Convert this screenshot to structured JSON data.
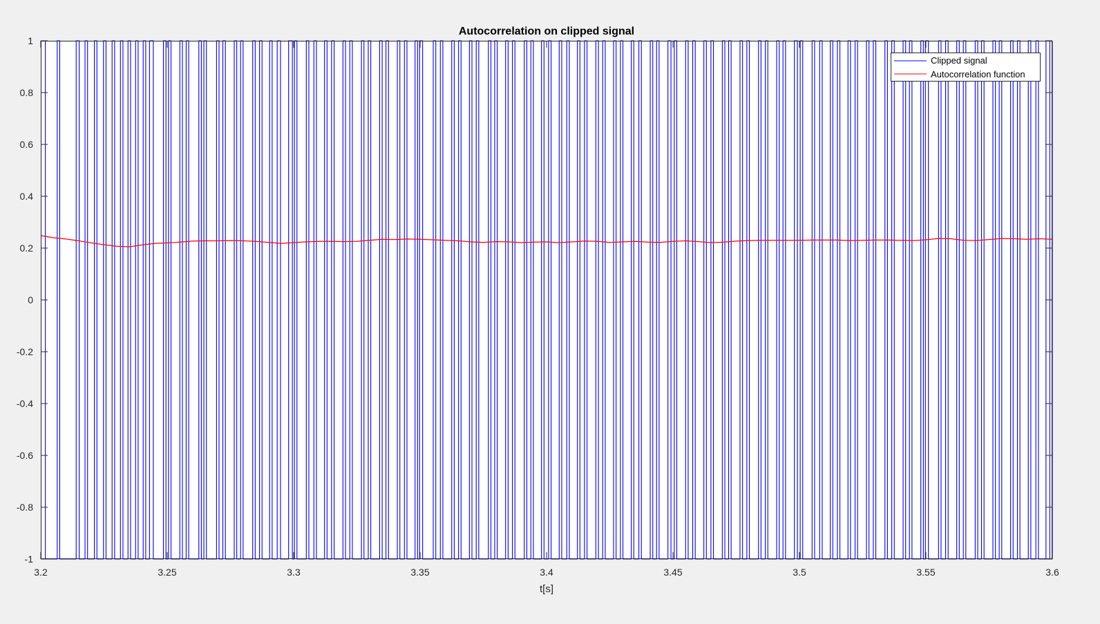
{
  "chart_data": {
    "type": "line",
    "title": "Autocorrelation on clipped signal",
    "xlabel": "t[s]",
    "ylabel": "",
    "xlim": [
      3.2,
      3.6
    ],
    "ylim": [
      -1,
      1
    ],
    "x_ticks": [
      "3.2",
      "3.25",
      "3.3",
      "3.35",
      "3.4",
      "3.45",
      "3.5",
      "3.55",
      "3.6"
    ],
    "y_ticks": [
      "1",
      "0.8",
      "0.6",
      "0.4",
      "0.2",
      "0",
      "-0.2",
      "-0.4",
      "-0.6",
      "-0.8",
      "-1"
    ],
    "grid": false,
    "legend_position": "top-right",
    "series": [
      {
        "name": "Clipped signal",
        "color": "#0000ff",
        "style": "square-wave",
        "levels": [
          -1,
          1
        ],
        "pulses": [
          [
            3.2,
            3.2018
          ],
          [
            3.2065,
            3.2075
          ],
          [
            3.214,
            3.2152
          ],
          [
            3.2175,
            3.2185
          ],
          [
            3.2212,
            3.2222
          ],
          [
            3.2248,
            3.2258
          ],
          [
            3.2282,
            3.2292
          ],
          [
            3.2315,
            3.2325
          ],
          [
            3.2345,
            3.2355
          ],
          [
            3.2375,
            3.2385
          ],
          [
            3.2405,
            3.2415
          ],
          [
            3.243,
            3.2445
          ],
          [
            3.2485,
            3.2495
          ],
          [
            3.2505,
            3.2515
          ],
          [
            3.255,
            3.256
          ],
          [
            3.2575,
            3.2585
          ],
          [
            3.2625,
            3.2635
          ],
          [
            3.2645,
            3.2655
          ],
          [
            3.2695,
            3.2705
          ],
          [
            3.272,
            3.273
          ],
          [
            3.2765,
            3.2775
          ],
          [
            3.279,
            3.28
          ],
          [
            3.2838,
            3.2848
          ],
          [
            3.2865,
            3.2875
          ],
          [
            3.2905,
            3.2915
          ],
          [
            3.2935,
            3.2948
          ],
          [
            3.298,
            3.2995
          ],
          [
            3.3003,
            3.3013
          ],
          [
            3.305,
            3.306
          ],
          [
            3.308,
            3.309
          ],
          [
            3.3122,
            3.3132
          ],
          [
            3.315,
            3.316
          ],
          [
            3.3195,
            3.3205
          ],
          [
            3.3222,
            3.3232
          ],
          [
            3.3268,
            3.3278
          ],
          [
            3.3295,
            3.3305
          ],
          [
            3.334,
            3.335
          ],
          [
            3.3365,
            3.3375
          ],
          [
            3.341,
            3.342
          ],
          [
            3.3438,
            3.3448
          ],
          [
            3.348,
            3.349
          ],
          [
            3.3498,
            3.351
          ],
          [
            3.3552,
            3.3562
          ],
          [
            3.358,
            3.359
          ],
          [
            3.3625,
            3.3635
          ],
          [
            3.3652,
            3.3662
          ],
          [
            3.3695,
            3.3705
          ],
          [
            3.3722,
            3.3732
          ],
          [
            3.377,
            3.378
          ],
          [
            3.3795,
            3.3805
          ],
          [
            3.3838,
            3.3848
          ],
          [
            3.3865,
            3.3875
          ],
          [
            3.3912,
            3.3922
          ],
          [
            3.3938,
            3.3948
          ],
          [
            3.398,
            3.399
          ],
          [
            3.4008,
            3.4018
          ],
          [
            3.405,
            3.406
          ],
          [
            3.408,
            3.409
          ],
          [
            3.4122,
            3.4132
          ],
          [
            3.415,
            3.416
          ],
          [
            3.4195,
            3.4205
          ],
          [
            3.4222,
            3.4232
          ],
          [
            3.4265,
            3.4275
          ],
          [
            3.4292,
            3.4302
          ],
          [
            3.4335,
            3.4345
          ],
          [
            3.4365,
            3.4375
          ],
          [
            3.441,
            3.442
          ],
          [
            3.4435,
            3.4445
          ],
          [
            3.448,
            3.4492
          ],
          [
            3.4505,
            3.4515
          ],
          [
            3.455,
            3.456
          ],
          [
            3.4578,
            3.4588
          ],
          [
            3.4622,
            3.4632
          ],
          [
            3.465,
            3.466
          ],
          [
            3.4695,
            3.4705
          ],
          [
            3.472,
            3.473
          ],
          [
            3.4765,
            3.4775
          ],
          [
            3.4792,
            3.4802
          ],
          [
            3.4838,
            3.4848
          ],
          [
            3.4865,
            3.4875
          ],
          [
            3.491,
            3.492
          ],
          [
            3.4935,
            3.4945
          ],
          [
            3.498,
            3.4992
          ],
          [
            3.5003,
            3.5013
          ],
          [
            3.505,
            3.506
          ],
          [
            3.508,
            3.509
          ],
          [
            3.5122,
            3.5132
          ],
          [
            3.515,
            3.516
          ],
          [
            3.5192,
            3.5202
          ],
          [
            3.522,
            3.523
          ],
          [
            3.5265,
            3.5275
          ],
          [
            3.5292,
            3.5302
          ],
          [
            3.5338,
            3.5348
          ],
          [
            3.5365,
            3.5375
          ],
          [
            3.541,
            3.542
          ],
          [
            3.5435,
            3.5445
          ],
          [
            3.548,
            3.549
          ],
          [
            3.5498,
            3.551
          ],
          [
            3.555,
            3.556
          ],
          [
            3.5578,
            3.5588
          ],
          [
            3.5622,
            3.5632
          ],
          [
            3.5648,
            3.5658
          ],
          [
            3.5695,
            3.5705
          ],
          [
            3.572,
            3.573
          ],
          [
            3.5765,
            3.5775
          ],
          [
            3.579,
            3.58
          ],
          [
            3.5835,
            3.5845
          ],
          [
            3.5862,
            3.5872
          ],
          [
            3.5905,
            3.5915
          ],
          [
            3.5935,
            3.5945
          ],
          [
            3.5975,
            3.599
          ]
        ]
      },
      {
        "name": "Autocorrelation function",
        "color": "#ff0000",
        "x": [
          3.2,
          3.205,
          3.21,
          3.215,
          3.22,
          3.225,
          3.23,
          3.235,
          3.24,
          3.245,
          3.25,
          3.255,
          3.26,
          3.265,
          3.27,
          3.275,
          3.28,
          3.285,
          3.29,
          3.295,
          3.3,
          3.305,
          3.31,
          3.315,
          3.32,
          3.325,
          3.33,
          3.335,
          3.34,
          3.345,
          3.35,
          3.355,
          3.36,
          3.365,
          3.37,
          3.375,
          3.38,
          3.385,
          3.39,
          3.395,
          3.4,
          3.405,
          3.41,
          3.415,
          3.42,
          3.425,
          3.43,
          3.435,
          3.44,
          3.445,
          3.45,
          3.455,
          3.46,
          3.465,
          3.47,
          3.475,
          3.48,
          3.485,
          3.49,
          3.495,
          3.5,
          3.505,
          3.51,
          3.515,
          3.52,
          3.525,
          3.53,
          3.535,
          3.54,
          3.545,
          3.55,
          3.555,
          3.56,
          3.565,
          3.57,
          3.575,
          3.58,
          3.585,
          3.59,
          3.595,
          3.6
        ],
        "y": [
          0.248,
          0.24,
          0.235,
          0.228,
          0.22,
          0.213,
          0.207,
          0.205,
          0.212,
          0.218,
          0.22,
          0.223,
          0.227,
          0.228,
          0.228,
          0.229,
          0.228,
          0.226,
          0.222,
          0.218,
          0.221,
          0.224,
          0.226,
          0.226,
          0.225,
          0.226,
          0.23,
          0.234,
          0.233,
          0.235,
          0.234,
          0.232,
          0.23,
          0.228,
          0.224,
          0.222,
          0.225,
          0.224,
          0.221,
          0.223,
          0.224,
          0.221,
          0.224,
          0.227,
          0.226,
          0.222,
          0.224,
          0.226,
          0.223,
          0.222,
          0.226,
          0.228,
          0.225,
          0.221,
          0.223,
          0.227,
          0.229,
          0.23,
          0.23,
          0.23,
          0.23,
          0.231,
          0.231,
          0.231,
          0.229,
          0.23,
          0.231,
          0.231,
          0.23,
          0.229,
          0.232,
          0.237,
          0.236,
          0.23,
          0.229,
          0.233,
          0.237,
          0.236,
          0.234,
          0.236,
          0.234
        ]
      }
    ]
  }
}
